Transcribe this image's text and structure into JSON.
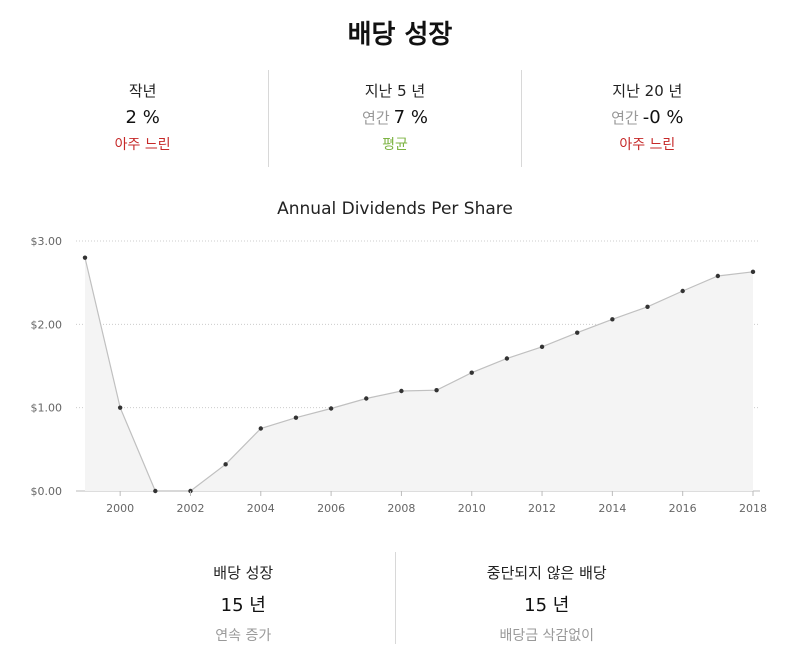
{
  "title": "배당 성장",
  "stats": [
    {
      "label": "작년",
      "prefix": "",
      "value": "2 %",
      "rating": "아주 느린",
      "rating_color": "#c62828"
    },
    {
      "label": "지난 5 년",
      "prefix": "연간",
      "value": "7 %",
      "rating": "평균",
      "rating_color": "#7cb342"
    },
    {
      "label": "지난 20 년",
      "prefix": "연간",
      "value": "-0 %",
      "rating": "아주 느린",
      "rating_color": "#c62828"
    }
  ],
  "chart_data": {
    "type": "area",
    "title": "Annual Dividends Per Share",
    "x": [
      1999,
      2000,
      2001,
      2002,
      2003,
      2004,
      2005,
      2006,
      2007,
      2008,
      2009,
      2010,
      2011,
      2012,
      2013,
      2014,
      2015,
      2016,
      2017,
      2018
    ],
    "values": [
      2.8,
      1.0,
      0.0,
      0.0,
      0.32,
      0.75,
      0.88,
      0.99,
      1.11,
      1.2,
      1.21,
      1.42,
      1.59,
      1.73,
      1.9,
      2.06,
      2.21,
      2.4,
      2.58,
      2.63
    ],
    "xticks": [
      "2000",
      "2002",
      "2004",
      "2006",
      "2008",
      "2010",
      "2012",
      "2014",
      "2016",
      "2018"
    ],
    "yticks": [
      "$0.00",
      "$1.00",
      "$2.00",
      "$3.00"
    ],
    "ylim": [
      0,
      3
    ],
    "xlim": [
      1999,
      2018
    ],
    "grid": "horizontal dotted",
    "line_color": "#c0c0c0",
    "fill_color": "#f4f4f4",
    "point_color": "#333333"
  },
  "bottom_stats": [
    {
      "label": "배당 성장",
      "value": "15 년",
      "sub": "연속 증가"
    },
    {
      "label": "중단되지 않은 배당",
      "value": "15 년",
      "sub": "배당금 삭감없이"
    }
  ]
}
